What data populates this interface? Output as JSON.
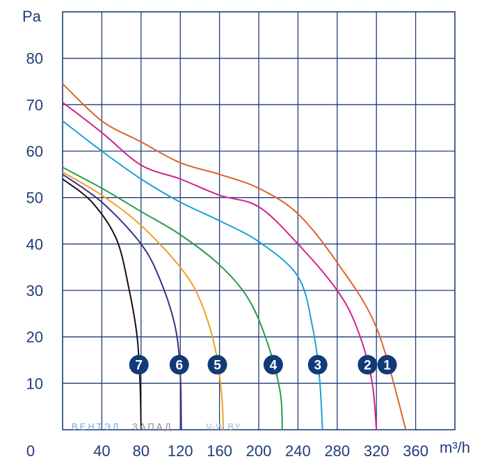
{
  "chart_data": {
    "type": "line",
    "ylabel": "Pa",
    "xlabel": "m³/h",
    "origin_label": "0",
    "xlim": [
      0,
      400
    ],
    "ylim": [
      0,
      90
    ],
    "x_ticks": [
      40,
      80,
      120,
      160,
      200,
      240,
      280,
      320,
      360
    ],
    "y_ticks": [
      10,
      20,
      30,
      40,
      50,
      60,
      70,
      80
    ],
    "grid": true,
    "watermark": {
      "blue": "ВЕНТЭЛ",
      "grey": "ЗАПАД",
      "url": "V-W.BY"
    },
    "series": [
      {
        "name": "1",
        "color": "#e0622a",
        "points": [
          [
            0,
            74.5
          ],
          [
            40,
            66.5
          ],
          [
            80,
            62
          ],
          [
            120,
            57.5
          ],
          [
            160,
            55
          ],
          [
            200,
            52
          ],
          [
            240,
            46.5
          ],
          [
            280,
            36
          ],
          [
            320,
            22
          ],
          [
            350,
            0
          ]
        ]
      },
      {
        "name": "2",
        "color": "#d4208c",
        "points": [
          [
            0,
            70.5
          ],
          [
            40,
            64
          ],
          [
            80,
            57
          ],
          [
            120,
            54
          ],
          [
            160,
            50.5
          ],
          [
            200,
            48
          ],
          [
            240,
            40
          ],
          [
            280,
            30
          ],
          [
            300,
            22
          ],
          [
            315,
            11
          ],
          [
            320,
            0
          ]
        ]
      },
      {
        "name": "3",
        "color": "#1ba0d4",
        "points": [
          [
            0,
            66.5
          ],
          [
            40,
            60
          ],
          [
            80,
            54
          ],
          [
            120,
            49
          ],
          [
            160,
            45
          ],
          [
            200,
            40.5
          ],
          [
            240,
            33
          ],
          [
            255,
            22
          ],
          [
            262,
            11
          ],
          [
            265,
            0
          ]
        ]
      },
      {
        "name": "4",
        "color": "#2a9a4a",
        "points": [
          [
            0,
            56.5
          ],
          [
            40,
            52
          ],
          [
            80,
            47
          ],
          [
            120,
            42
          ],
          [
            160,
            35.5
          ],
          [
            190,
            28
          ],
          [
            210,
            18
          ],
          [
            222,
            8
          ],
          [
            224,
            0
          ]
        ]
      },
      {
        "name": "5",
        "color": "#f0a020",
        "points": [
          [
            0,
            55.5
          ],
          [
            40,
            50.5
          ],
          [
            80,
            44
          ],
          [
            120,
            35
          ],
          [
            140,
            28
          ],
          [
            155,
            18
          ],
          [
            162,
            8
          ],
          [
            164,
            0
          ]
        ]
      },
      {
        "name": "6",
        "color": "#3c2c84",
        "points": [
          [
            0,
            55
          ],
          [
            40,
            49
          ],
          [
            80,
            40
          ],
          [
            100,
            32
          ],
          [
            115,
            22
          ],
          [
            120,
            12
          ],
          [
            121,
            0
          ]
        ]
      },
      {
        "name": "7",
        "color": "#111111",
        "points": [
          [
            0,
            54
          ],
          [
            30,
            49
          ],
          [
            55,
            41
          ],
          [
            68,
            30
          ],
          [
            76,
            20
          ],
          [
            79,
            10
          ],
          [
            80,
            0
          ]
        ]
      }
    ]
  }
}
